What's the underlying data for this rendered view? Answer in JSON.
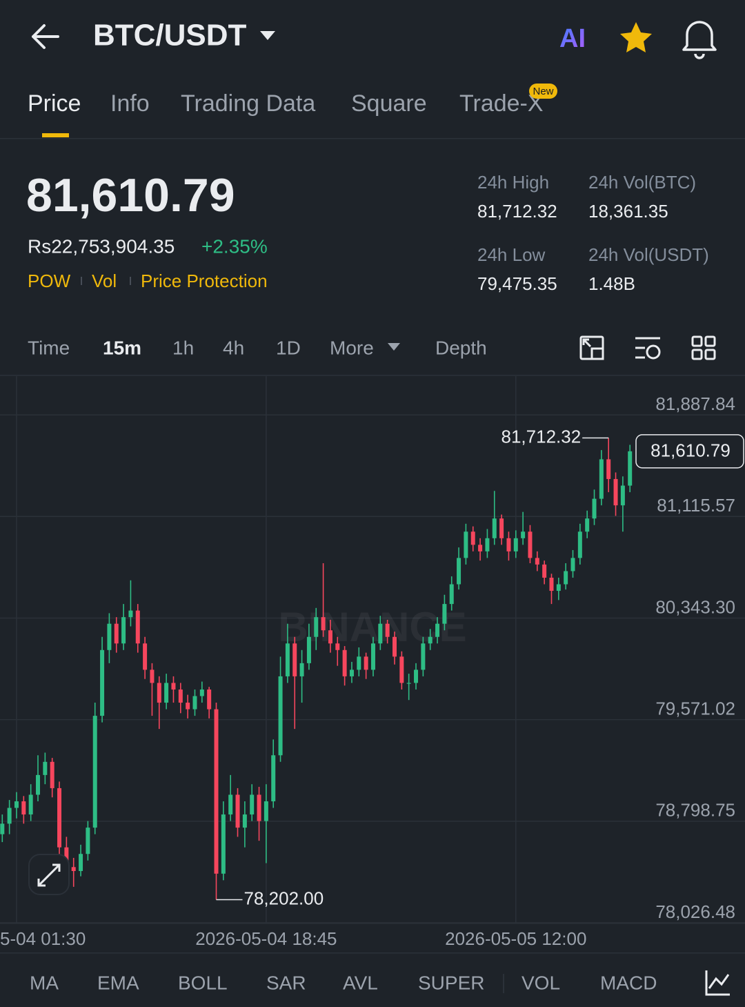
{
  "header": {
    "pair": "BTC/USDT",
    "ai": "AI"
  },
  "tabs": [
    "Price",
    "Info",
    "Trading Data",
    "Square",
    "Trade-X"
  ],
  "new_badge": "New",
  "ticker": {
    "price": "81,610.79",
    "local_price": "Rs22,753,904.35",
    "change": "+2.35%",
    "tags": [
      "POW",
      "Vol",
      "Price Protection"
    ],
    "stats": [
      {
        "label": "24h High",
        "value": "81,712.32"
      },
      {
        "label": "24h Vol(BTC)",
        "value": "18,361.35"
      },
      {
        "label": "24h Low",
        "value": "79,475.35"
      },
      {
        "label": "24h Vol(USDT)",
        "value": "1.48B"
      }
    ]
  },
  "intervals": [
    "Time",
    "15m",
    "1h",
    "4h",
    "1D",
    "More",
    "Depth"
  ],
  "indicators": [
    "MA",
    "EMA",
    "BOLL",
    "SAR",
    "AVL",
    "SUPER",
    "VOL",
    "MACD"
  ],
  "watermark": "BINANCE",
  "chart_data": {
    "type": "candlestick",
    "up_color": "#2ebd85",
    "down_color": "#f6465d",
    "grid": true,
    "ylim": [
      78026.48,
      82182
    ],
    "yticks": [
      {
        "value": 78026.48,
        "label": "78,026.48"
      },
      {
        "value": 78798.75,
        "label": "78,798.75"
      },
      {
        "value": 79571.02,
        "label": "79,571.02"
      },
      {
        "value": 80343.3,
        "label": "80,343.30"
      },
      {
        "value": 81115.57,
        "label": "81,115.57"
      },
      {
        "value": 81887.84,
        "label": "81,887.84"
      }
    ],
    "xlim": [
      -0.32,
      104.13
    ],
    "xticks": [
      {
        "value": 2,
        "label": "5-04 01:30"
      },
      {
        "value": 37,
        "label": "2026-05-04 18:45"
      },
      {
        "value": 72,
        "label": "2026-05-05 12:00"
      }
    ],
    "open": [
      78700,
      78780,
      78900,
      78950,
      78850,
      79000,
      79150,
      79250,
      79050,
      78600,
      78450,
      78420,
      78550,
      78750,
      79600,
      80100,
      80300,
      80150,
      80350,
      80400,
      80150,
      79950,
      79850,
      79700,
      79850,
      79800,
      79700,
      79650,
      79750,
      79800,
      79650,
      78400,
      78850,
      79000,
      78750,
      78850,
      79000,
      78800,
      78950,
      79300,
      79900,
      80150,
      79900,
      80000,
      80200,
      80350,
      80250,
      80150,
      80100,
      79900,
      79950,
      80050,
      79950,
      80150,
      80300,
      80200,
      80050,
      79850,
      79850,
      79950,
      80150,
      80200,
      80300,
      80450,
      80600,
      80800,
      81000,
      80900,
      80850,
      80950,
      81100,
      80950,
      80850,
      80950,
      81000,
      80800,
      80750,
      80650,
      80550,
      80600,
      80700,
      80800,
      81000,
      81100,
      81250,
      81550,
      81400,
      81200,
      81350
    ],
    "high": [
      78850,
      78960,
      79020,
      78990,
      79080,
      79300,
      79320,
      79280,
      79100,
      78680,
      78520,
      78620,
      78800,
      79700,
      80200,
      80380,
      80350,
      80450,
      80630,
      80450,
      80200,
      80000,
      79900,
      79920,
      79900,
      79850,
      79760,
      79800,
      79860,
      79820,
      79700,
      78950,
      79150,
      79050,
      78950,
      79080,
      79060,
      79080,
      79420,
      80050,
      80300,
      80200,
      80100,
      80300,
      80420,
      80760,
      80330,
      80200,
      80130,
      80010,
      80120,
      80080,
      80200,
      80360,
      80330,
      80240,
      80090,
      79920,
      80000,
      80200,
      80260,
      80350,
      80520,
      80660,
      80880,
      81060,
      81040,
      80950,
      81020,
      81310,
      81130,
      81000,
      81010,
      81150,
      81050,
      80850,
      80780,
      80680,
      80650,
      80760,
      80860,
      81060,
      81160,
      81320,
      81620,
      81712.32,
      81450,
      81420,
      81660
    ],
    "low": [
      78640,
      78700,
      78820,
      78780,
      78800,
      78950,
      79080,
      78980,
      78540,
      78380,
      78300,
      78380,
      78500,
      78700,
      79550,
      80000,
      80080,
      80100,
      80280,
      80080,
      79880,
      79600,
      79500,
      79650,
      79700,
      79620,
      79580,
      79600,
      79700,
      79580,
      78202,
      78350,
      78800,
      78680,
      78600,
      78800,
      78650,
      78480,
      78900,
      79250,
      79850,
      79500,
      79700,
      79950,
      80100,
      80200,
      80080,
      79980,
      79830,
      79850,
      79900,
      79880,
      79900,
      80100,
      80150,
      79990,
      79800,
      79720,
      79800,
      79900,
      80100,
      80150,
      80250,
      80400,
      80560,
      80750,
      80850,
      80780,
      80800,
      80900,
      80900,
      80780,
      80800,
      80900,
      80760,
      80700,
      80600,
      80450,
      80480,
      80560,
      80650,
      80750,
      80950,
      81050,
      81200,
      81300,
      81120,
      81000,
      81300
    ],
    "close": [
      78780,
      78900,
      78950,
      78850,
      79000,
      79150,
      79250,
      79050,
      78600,
      78450,
      78420,
      78550,
      78750,
      79600,
      80100,
      80300,
      80150,
      80350,
      80400,
      80150,
      79950,
      79850,
      79700,
      79850,
      79800,
      79700,
      79650,
      79750,
      79800,
      79650,
      78400,
      78850,
      79000,
      78750,
      78850,
      79000,
      78800,
      78950,
      79300,
      79900,
      80150,
      79900,
      80000,
      80200,
      80350,
      80250,
      80150,
      80100,
      79900,
      79950,
      80050,
      79950,
      80150,
      80300,
      80200,
      80050,
      79850,
      79850,
      79950,
      80150,
      80200,
      80300,
      80450,
      80600,
      80800,
      81000,
      80900,
      80850,
      80950,
      81100,
      80950,
      80850,
      80950,
      81000,
      80800,
      80750,
      80650,
      80550,
      80600,
      80700,
      80800,
      81000,
      81100,
      81250,
      81550,
      81400,
      81200,
      81350,
      81610.79
    ],
    "high_label": {
      "value": 81712.32,
      "label": "81,712.32"
    },
    "low_label": {
      "value": 78202.0,
      "label": "78,202.00"
    },
    "last_price": {
      "value": 81610.79,
      "label": "81,610.79"
    }
  }
}
